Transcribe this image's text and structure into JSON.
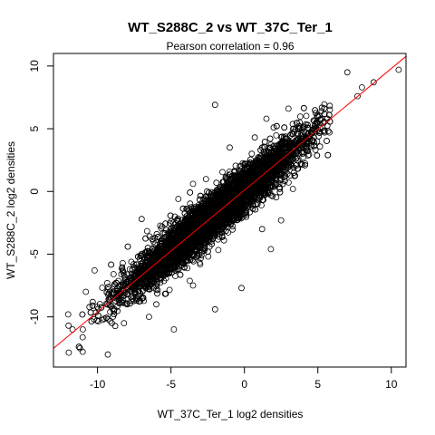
{
  "chart_data": {
    "type": "scatter",
    "title": "WT_S288C_2 vs WT_37C_Ter_1",
    "subtitle": "Pearson correlation =  0.96",
    "xlabel": "WT_37C_Ter_1 log2 densities",
    "ylabel": "WT_S288C_2 log2 densities",
    "xlim": [
      -13,
      11
    ],
    "ylim": [
      -14,
      11
    ],
    "x_ticks": [
      -10,
      -5,
      0,
      5,
      10
    ],
    "y_ticks": [
      -10,
      -5,
      0,
      5,
      10
    ],
    "x_tick_labels": [
      "-10",
      "-5",
      "0",
      "5",
      "10"
    ],
    "y_tick_labels": [
      "-10",
      "-5",
      "0",
      "5",
      "10"
    ],
    "grid": false,
    "point_style": "open-circle",
    "point_color": "#000000",
    "fit_line": {
      "slope": 0.97,
      "intercept": 0.1,
      "color": "#ff0000"
    },
    "cloud": {
      "n": 6000,
      "x_mean": -2.0,
      "x_sd": 3.0,
      "noise_sd": 0.9
    },
    "outliers": [
      [
        10.5,
        9.7
      ],
      [
        7.0,
        9.5
      ],
      [
        8.0,
        8.3
      ],
      [
        8.8,
        8.7
      ],
      [
        7.7,
        7.6
      ],
      [
        3.0,
        6.6
      ],
      [
        -2.0,
        6.9
      ],
      [
        1.5,
        5.8
      ],
      [
        -1.0,
        3.5
      ],
      [
        0.7,
        4.3
      ],
      [
        -3.5,
        0.6
      ],
      [
        -4.5,
        -0.6
      ],
      [
        -7.0,
        -2.2
      ],
      [
        -7.8,
        -6.2
      ],
      [
        -10.2,
        -6.3
      ],
      [
        -11.0,
        -11.0
      ],
      [
        -11.2,
        -12.5
      ],
      [
        -9.3,
        -13.0
      ],
      [
        -11.7,
        -11.0
      ],
      [
        -5.6,
        -2.8
      ],
      [
        -3.5,
        -7.5
      ],
      [
        -2.0,
        -9.4
      ],
      [
        -0.2,
        -7.7
      ],
      [
        1.8,
        -4.6
      ],
      [
        2.5,
        -2.3
      ],
      [
        1.2,
        -3.0
      ],
      [
        1.8,
        -0.3
      ],
      [
        3.3,
        0.2
      ],
      [
        -4.8,
        -11.0
      ],
      [
        -6.5,
        -10.0
      ],
      [
        -8.2,
        -10.5
      ],
      [
        -10.8,
        -8.0
      ],
      [
        -12.0,
        -9.8
      ],
      [
        -6.0,
        -9.0
      ],
      [
        0.5,
        3.0
      ]
    ]
  }
}
